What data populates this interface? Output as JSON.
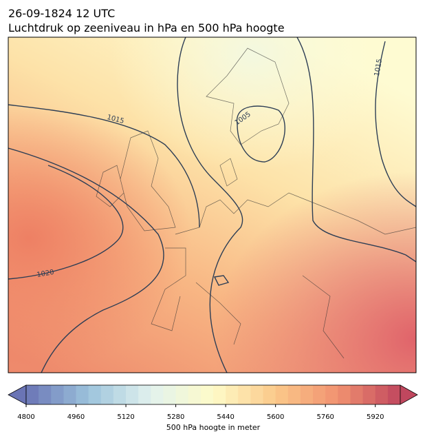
{
  "header": {
    "title": "26-09-1824 12 UTC",
    "subtitle": "Luchtdruk op zeeniveau in hPa en 500 hPa hoogte"
  },
  "isobar_labels": [
    "1015",
    "1005",
    "1015",
    "1020"
  ],
  "colorbar": {
    "lim": [
      4800,
      6000
    ],
    "step": 40,
    "ticks": [
      4800,
      4960,
      5120,
      5280,
      5440,
      5600,
      5760,
      5920
    ],
    "colors": [
      "#6a74b5",
      "#9cc3dc",
      "#e2f2ee",
      "#fefbc8",
      "#fbc98a",
      "#f19170",
      "#c0475e"
    ],
    "label": "500 hPa hoogte in meter"
  }
}
